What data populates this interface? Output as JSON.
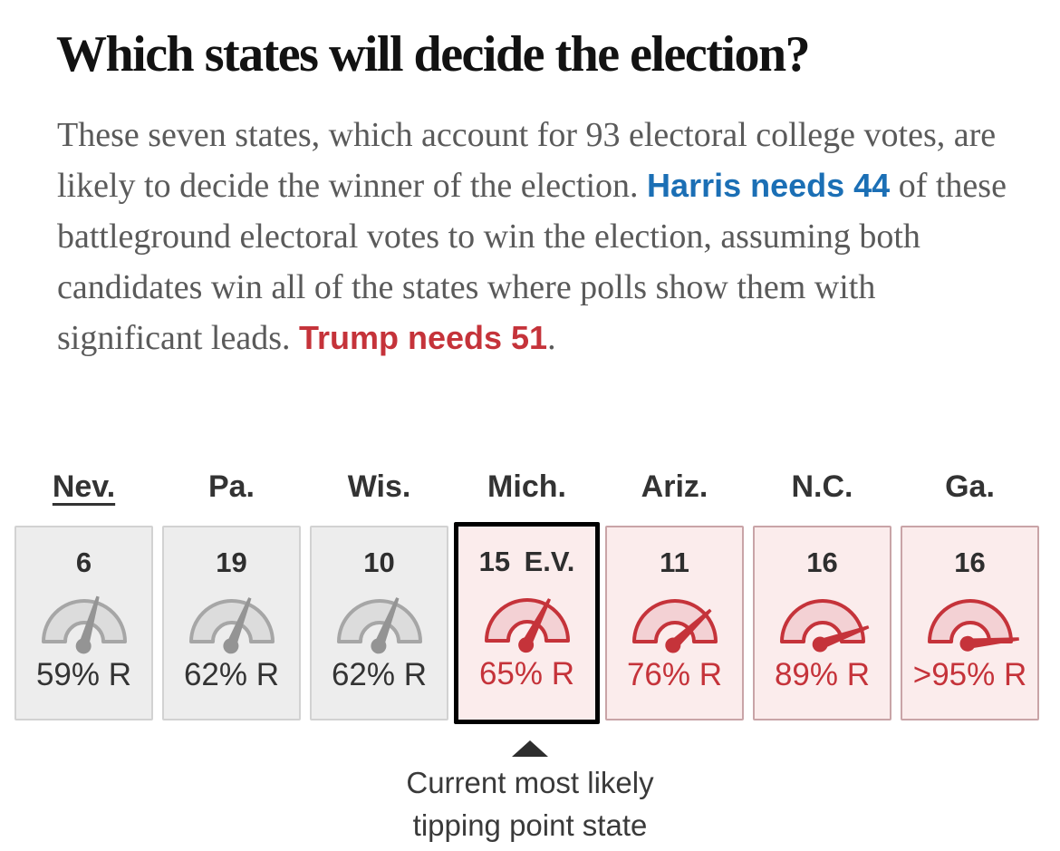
{
  "title": "Which states will decide the election?",
  "intro": {
    "part1": "These seven states, which account for 93 electoral college votes, are likely to decide the winner of the election. ",
    "harris_highlight": "Harris needs 44",
    "part2": " of these battleground electoral votes to win the election, assuming both candidates win all of the states where polls show them with significant leads. ",
    "trump_highlight": "Trump needs 51",
    "part3": "."
  },
  "annotation": {
    "text": "Current most likely tipping point state"
  },
  "states": [
    {
      "id": "nev",
      "label": "Nev.",
      "ev_label": "6",
      "pct_label": "59% R",
      "needle_pct": 59,
      "theme": "gray",
      "underlined": true,
      "highlighted": false
    },
    {
      "id": "pa",
      "label": "Pa.",
      "ev_label": "19",
      "pct_label": "62% R",
      "needle_pct": 62,
      "theme": "gray",
      "underlined": false,
      "highlighted": false
    },
    {
      "id": "wis",
      "label": "Wis.",
      "ev_label": "10",
      "pct_label": "62% R",
      "needle_pct": 62,
      "theme": "gray",
      "underlined": false,
      "highlighted": false
    },
    {
      "id": "mich",
      "label": "Mich.",
      "ev_label": "15 E.V.",
      "pct_label": "65% R",
      "needle_pct": 65,
      "theme": "red",
      "underlined": false,
      "highlighted": true
    },
    {
      "id": "ariz",
      "label": "Ariz.",
      "ev_label": "11",
      "pct_label": "76% R",
      "needle_pct": 76,
      "theme": "red",
      "underlined": false,
      "highlighted": false
    },
    {
      "id": "nc",
      "label": "N.C.",
      "ev_label": "16",
      "pct_label": "89% R",
      "needle_pct": 89,
      "theme": "red",
      "underlined": false,
      "highlighted": false
    },
    {
      "id": "ga",
      "label": "Ga.",
      "ev_label": "16",
      "pct_label": ">95% R",
      "needle_pct": 97,
      "theme": "red",
      "underlined": false,
      "highlighted": false
    }
  ],
  "colors": {
    "harris_blue": "#1b6fb5",
    "trump_red": "#c5333a",
    "highlight_border": "#000000",
    "gray": {
      "gauge_fill": "#dcdcdc",
      "gauge_stroke": "#a6a6a6",
      "needle": "#949494",
      "card_bg": "#ededed",
      "card_border": "#d2d2d2",
      "pct_text": "#333333"
    },
    "red": {
      "gauge_fill": "#f3d1d4",
      "gauge_stroke": "#c5333a",
      "needle": "#c5333a",
      "card_bg": "#fbecec",
      "card_border": "#c9a4a7",
      "pct_text": "#c5333a"
    }
  },
  "chart_data": {
    "type": "gauge",
    "title": "Which states will decide the election?",
    "subtitle": "These seven states, which account for 93 electoral college votes, are likely to decide the winner of the election. Harris needs 44 of these battleground electoral votes to win the election, assuming both candidates win all of the states where polls show them with significant leads. Trump needs 51.",
    "categories": [
      "Nev.",
      "Pa.",
      "Wis.",
      "Mich.",
      "Ariz.",
      "N.C.",
      "Ga."
    ],
    "series": [
      {
        "name": "Electoral votes",
        "values": [
          6,
          19,
          10,
          15,
          11,
          16,
          16
        ]
      },
      {
        "name": "Republican win probability (%)",
        "values": [
          59,
          62,
          62,
          65,
          76,
          89,
          95
        ]
      }
    ],
    "value_labels": [
      "59% R",
      "62% R",
      "62% R",
      "65% R",
      "76% R",
      "89% R",
      ">95% R"
    ],
    "lean_theme": [
      "gray",
      "gray",
      "gray",
      "red",
      "red",
      "red",
      "red"
    ],
    "battleground_total_ev": 93,
    "harris_needs": 44,
    "trump_needs": 51,
    "gauge_range_pct": [
      0,
      100
    ],
    "annotated_category": "Mich.",
    "annotation": "Current most likely tipping point state"
  }
}
